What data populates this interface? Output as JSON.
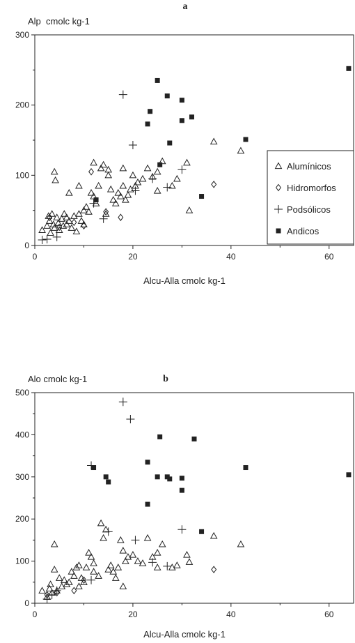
{
  "chart_data": [
    {
      "type": "scatter",
      "panel": "a",
      "ylabel": "Alp  cmolc kg-1",
      "xlabel": "Alcu-Alla cmolc kg-1",
      "xlim": [
        0,
        65
      ],
      "ylim": [
        0,
        300
      ],
      "xticks": [
        0,
        20,
        40,
        60
      ],
      "yticks": [
        0,
        100,
        200,
        300
      ],
      "legend": {
        "placement": "right",
        "entries": [
          "Alumínicos",
          "Hidromorfos",
          "Podsólicos",
          "Andicos"
        ]
      },
      "series": [
        {
          "name": "Alumínicos",
          "marker": "triangle",
          "points": [
            [
              1.5,
              22
            ],
            [
              2.5,
              28
            ],
            [
              2.8,
              42
            ],
            [
              3,
              35
            ],
            [
              3.2,
              18
            ],
            [
              3.5,
              45
            ],
            [
              3.8,
              30
            ],
            [
              4,
              25
            ],
            [
              4,
              105
            ],
            [
              4.2,
              93
            ],
            [
              4.5,
              40
            ],
            [
              4.8,
              32
            ],
            [
              5,
              22
            ],
            [
              5.5,
              38
            ],
            [
              5.8,
              28
            ],
            [
              6,
              45
            ],
            [
              6.5,
              30
            ],
            [
              6.5,
              40
            ],
            [
              7,
              35
            ],
            [
              7,
              75
            ],
            [
              7.5,
              25
            ],
            [
              8,
              42
            ],
            [
              8.5,
              20
            ],
            [
              9,
              45
            ],
            [
              9,
              85
            ],
            [
              9.5,
              35
            ],
            [
              10,
              30
            ],
            [
              10,
              50
            ],
            [
              10.5,
              55
            ],
            [
              11,
              48
            ],
            [
              11.5,
              75
            ],
            [
              12,
              70
            ],
            [
              12,
              118
            ],
            [
              12.5,
              60
            ],
            [
              13,
              85
            ],
            [
              13.5,
              110
            ],
            [
              14,
              115
            ],
            [
              14.5,
              45
            ],
            [
              15,
              100
            ],
            [
              15,
              108
            ],
            [
              15.5,
              80
            ],
            [
              16,
              65
            ],
            [
              16.5,
              60
            ],
            [
              17,
              75
            ],
            [
              17.5,
              70
            ],
            [
              18,
              85
            ],
            [
              18,
              110
            ],
            [
              18.5,
              65
            ],
            [
              19,
              72
            ],
            [
              19.5,
              80
            ],
            [
              20,
              100
            ],
            [
              20.5,
              85
            ],
            [
              21,
              90
            ],
            [
              22,
              95
            ],
            [
              23,
              110
            ],
            [
              24,
              98
            ],
            [
              25,
              78
            ],
            [
              25,
              105
            ],
            [
              26,
              120
            ],
            [
              28,
              85
            ],
            [
              29,
              95
            ],
            [
              31,
              118
            ],
            [
              31.5,
              50
            ],
            [
              36.5,
              148
            ],
            [
              42,
              135
            ]
          ]
        },
        {
          "name": "Hidromorfos",
          "marker": "diamond",
          "points": [
            [
              3,
              40
            ],
            [
              5,
              26
            ],
            [
              8,
              33
            ],
            [
              10,
              28
            ],
            [
              11.5,
              105
            ],
            [
              14.5,
              48
            ],
            [
              17.5,
              40
            ],
            [
              36.5,
              87
            ]
          ]
        },
        {
          "name": "Podsólicos",
          "marker": "plus",
          "points": [
            [
              1.5,
              8
            ],
            [
              2.5,
              9
            ],
            [
              4.5,
              12
            ],
            [
              12,
              60
            ],
            [
              14,
              38
            ],
            [
              18,
              215
            ],
            [
              20,
              143
            ],
            [
              20.5,
              78
            ],
            [
              24,
              95
            ],
            [
              27,
              83
            ],
            [
              30,
              108
            ]
          ]
        },
        {
          "name": "Andicos",
          "marker": "square",
          "points": [
            [
              12.5,
              65
            ],
            [
              23,
              173
            ],
            [
              23.5,
              191
            ],
            [
              25,
              235
            ],
            [
              25.5,
              115
            ],
            [
              27,
              213
            ],
            [
              27.5,
              146
            ],
            [
              30,
              207
            ],
            [
              30,
              178
            ],
            [
              32,
              183
            ],
            [
              34,
              70
            ],
            [
              43,
              151
            ],
            [
              64,
              252
            ]
          ]
        }
      ]
    },
    {
      "type": "scatter",
      "panel": "b",
      "ylabel": "Alo cmolc kg-1",
      "xlabel": "Alcu-Alla cmolc kg-1",
      "xlim": [
        0,
        65
      ],
      "ylim": [
        0,
        500
      ],
      "xticks": [
        0,
        20,
        40,
        60
      ],
      "yticks": [
        0,
        100,
        200,
        300,
        400,
        500
      ],
      "series": [
        {
          "name": "Alumínicos",
          "marker": "triangle",
          "points": [
            [
              1.5,
              30
            ],
            [
              2.5,
              15
            ],
            [
              3,
              35
            ],
            [
              3.2,
              45
            ],
            [
              3.5,
              25
            ],
            [
              4,
              80
            ],
            [
              4,
              140
            ],
            [
              4.5,
              30
            ],
            [
              5,
              60
            ],
            [
              5.5,
              40
            ],
            [
              6,
              55
            ],
            [
              6.5,
              45
            ],
            [
              7,
              50
            ],
            [
              7.5,
              75
            ],
            [
              8,
              65
            ],
            [
              8.5,
              85
            ],
            [
              9,
              90
            ],
            [
              9,
              40
            ],
            [
              9.5,
              60
            ],
            [
              10,
              50
            ],
            [
              10.5,
              85
            ],
            [
              11,
              120
            ],
            [
              11.5,
              110
            ],
            [
              12,
              95
            ],
            [
              12,
              75
            ],
            [
              13,
              65
            ],
            [
              13.5,
              190
            ],
            [
              14,
              155
            ],
            [
              14.5,
              175
            ],
            [
              15,
              80
            ],
            [
              15.5,
              90
            ],
            [
              16,
              75
            ],
            [
              16.5,
              60
            ],
            [
              17,
              85
            ],
            [
              17.5,
              150
            ],
            [
              18,
              125
            ],
            [
              18,
              40
            ],
            [
              18.5,
              100
            ],
            [
              19,
              110
            ],
            [
              20,
              115
            ],
            [
              21,
              100
            ],
            [
              22,
              95
            ],
            [
              23,
              155
            ],
            [
              24,
              110
            ],
            [
              25,
              120
            ],
            [
              25,
              85
            ],
            [
              26,
              140
            ],
            [
              28,
              85
            ],
            [
              29,
              90
            ],
            [
              31,
              115
            ],
            [
              31.5,
              98
            ],
            [
              36.5,
              160
            ],
            [
              42,
              140
            ]
          ]
        },
        {
          "name": "Hidromorfos",
          "marker": "diamond",
          "points": [
            [
              2.5,
              20
            ],
            [
              4.5,
              25
            ],
            [
              8,
              30
            ],
            [
              10,
              55
            ],
            [
              36.5,
              80
            ]
          ]
        },
        {
          "name": "Podsólicos",
          "marker": "plus",
          "points": [
            [
              2.5,
              10
            ],
            [
              3.5,
              20
            ],
            [
              4.5,
              30
            ],
            [
              11.5,
              55
            ],
            [
              11.5,
              327
            ],
            [
              15,
              170
            ],
            [
              18,
              478
            ],
            [
              19.5,
              437
            ],
            [
              20.5,
              150
            ],
            [
              24,
              97
            ],
            [
              27,
              88
            ],
            [
              30,
              175
            ]
          ]
        },
        {
          "name": "Andicos",
          "marker": "square",
          "points": [
            [
              12,
              322
            ],
            [
              14.5,
              300
            ],
            [
              15,
              288
            ],
            [
              23,
              235
            ],
            [
              23,
              335
            ],
            [
              25,
              300
            ],
            [
              25.5,
              395
            ],
            [
              27,
              300
            ],
            [
              27.5,
              295
            ],
            [
              30,
              297
            ],
            [
              30,
              268
            ],
            [
              32.5,
              390
            ],
            [
              34,
              170
            ],
            [
              43,
              322
            ],
            [
              64,
              305
            ]
          ]
        }
      ]
    }
  ]
}
